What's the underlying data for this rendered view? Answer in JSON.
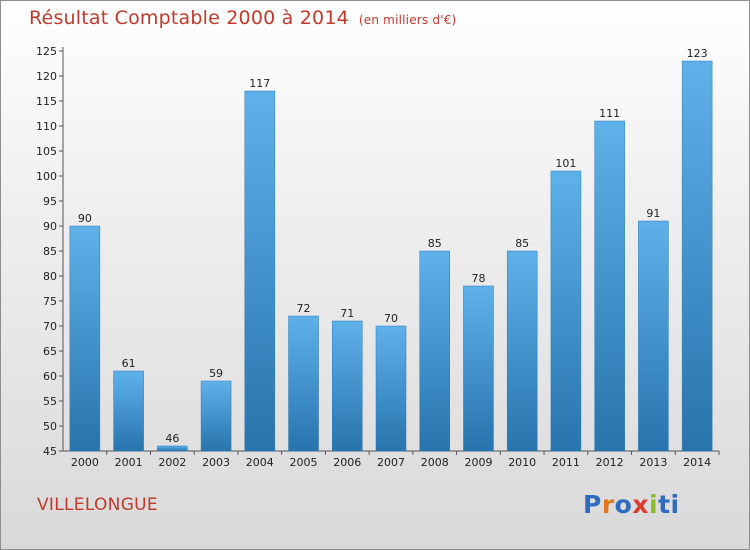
{
  "title": "Résultat Comptable 2000 à 2014",
  "subtitle": "(en milliers d'€)",
  "place": "VILLELONGUE",
  "logo": {
    "letters": [
      "P",
      "r",
      "o",
      "x",
      "i",
      "t",
      "i"
    ],
    "colors": [
      "#2f6bbf",
      "#e3761c",
      "#2f6bbf",
      "#e03a2f",
      "#8bbf2a",
      "#2f6bbf",
      "#2f6bbf"
    ]
  },
  "colors": {
    "bar": "#3f97d6",
    "bar_top": "#5fb1ea",
    "bar_bottom": "#2874ad",
    "text_accent": "#c0392b"
  },
  "chart_data": {
    "type": "bar",
    "title": "Résultat Comptable 2000 à 2014",
    "subtitle": "(en milliers d'€)",
    "categories": [
      "2000",
      "2001",
      "2002",
      "2003",
      "2004",
      "2005",
      "2006",
      "2007",
      "2008",
      "2009",
      "2010",
      "2011",
      "2012",
      "2013",
      "2014"
    ],
    "values": [
      90,
      61,
      46,
      59,
      117,
      72,
      71,
      70,
      85,
      78,
      85,
      101,
      111,
      91,
      123
    ],
    "ylim": [
      45,
      125
    ],
    "yticks": [
      45,
      50,
      55,
      60,
      65,
      70,
      75,
      80,
      85,
      90,
      95,
      100,
      105,
      110,
      115,
      120,
      125
    ],
    "grid": false,
    "data_labels": true
  }
}
